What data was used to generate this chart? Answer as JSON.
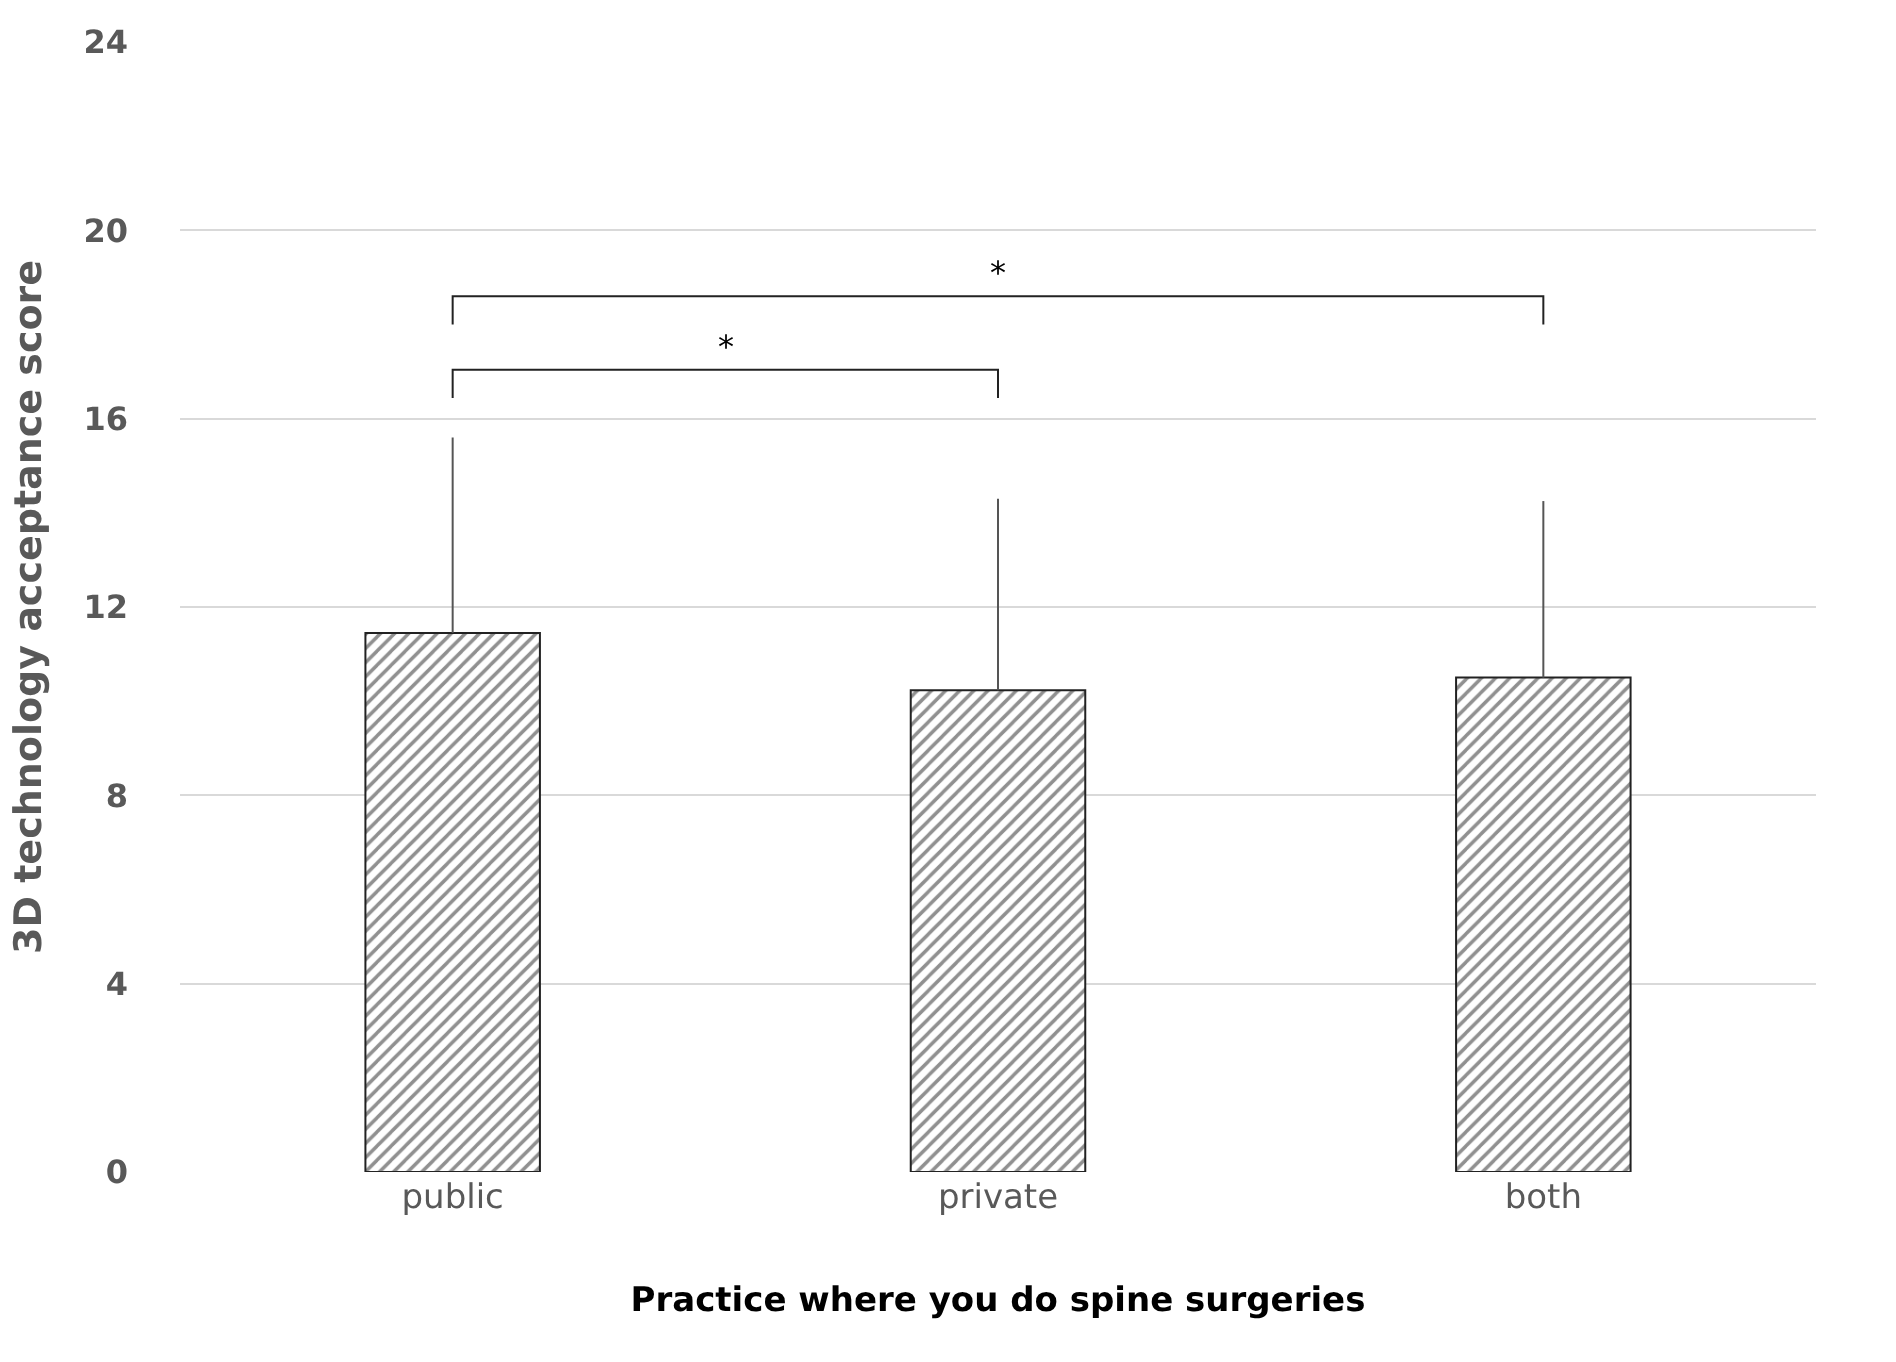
{
  "chart_data": {
    "type": "bar",
    "categories": [
      "public",
      "private",
      "both"
    ],
    "values": [
      11.45,
      10.23,
      10.5
    ],
    "errors": [
      [
        11.45,
        15.6
      ],
      [
        10.23,
        14.3
      ],
      [
        10.5,
        14.25
      ]
    ],
    "color": "#222222",
    "xlabel": "Practice where you do spine surgeries",
    "ylabel": "3D technology acceptance score",
    "ylim": [
      0,
      24
    ],
    "yticks": [
      0,
      4,
      8,
      12,
      16,
      20,
      24
    ],
    "grid": "y",
    "legend": false,
    "annotations": [
      "*",
      "*"
    ]
  }
}
